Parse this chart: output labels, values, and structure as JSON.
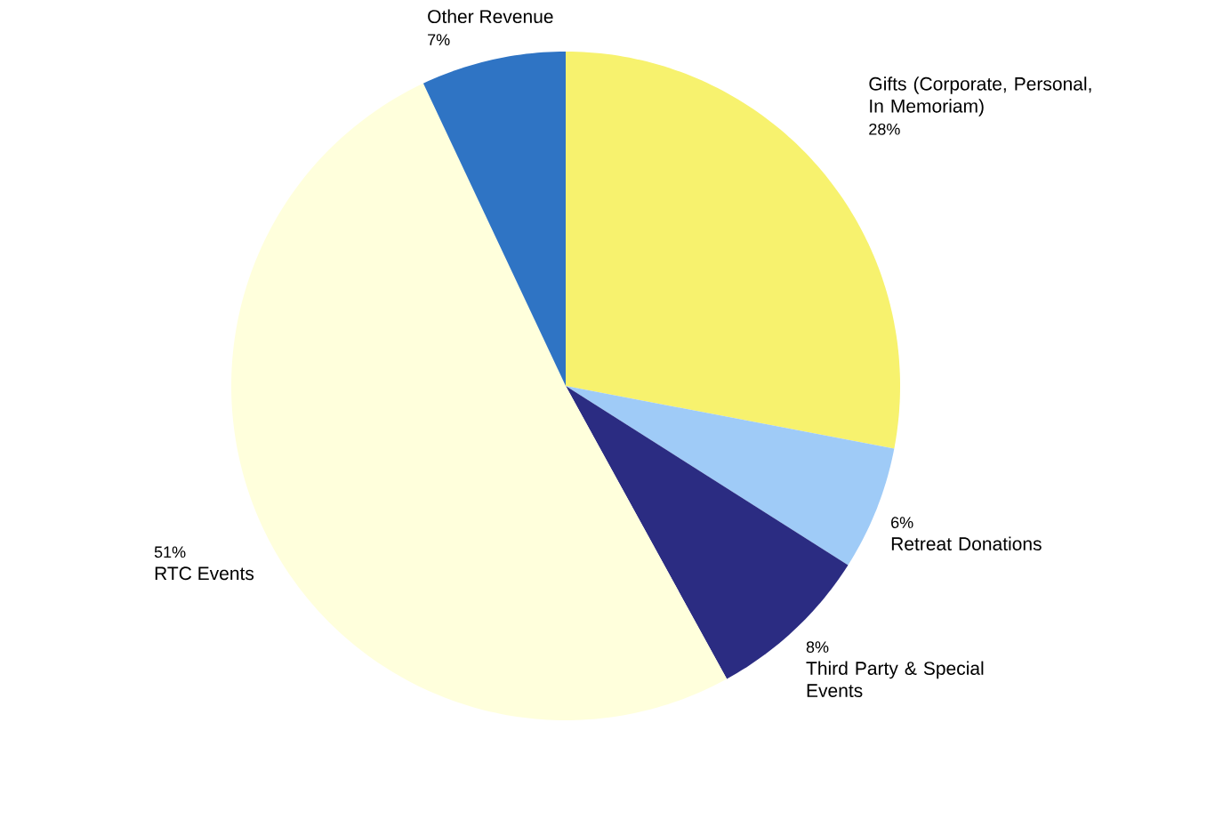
{
  "chart_data": {
    "type": "pie",
    "categories": [
      "Gifts (Corporate, Personal, In Memoriam)",
      "Retreat Donations",
      "Third Party & Special Events",
      "RTC Events",
      "Other Revenue"
    ],
    "values": [
      28,
      6,
      8,
      51,
      7
    ],
    "value_labels": [
      "28%",
      "6%",
      "8%",
      "51%",
      "7%"
    ],
    "colors": [
      "#f7f26e",
      "#9fcbf7",
      "#2b2c82",
      "#ffffdc",
      "#2f74c4"
    ]
  }
}
